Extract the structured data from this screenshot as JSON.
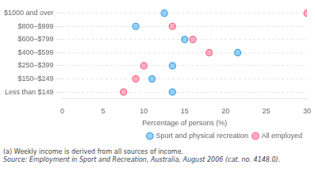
{
  "chart_data": {
    "type": "dot",
    "orientation": "horizontal",
    "categories": [
      "Less than $149",
      "$150–$249",
      "$250–$399",
      "$400–$599",
      "$600–$799",
      "$800–$999",
      "$1000 and over"
    ],
    "series": [
      {
        "name": "Sport and physical recreation",
        "marker": "circle",
        "values": [
          13.5,
          11.0,
          13.5,
          21.5,
          15.0,
          9.0,
          12.5
        ]
      },
      {
        "name": "All employed",
        "marker": "circle",
        "values": [
          7.5,
          9.0,
          10.0,
          18.0,
          16.0,
          13.5,
          30.0
        ]
      }
    ],
    "xlabel": "Percentage of persons (%)",
    "xlim": [
      0,
      30
    ],
    "xticks": [
      0,
      5,
      10,
      15,
      20,
      25,
      30
    ],
    "grid": true,
    "legend": "lower right",
    "annotations": [
      "(a) Weekly income is derived from all sources of income.",
      "Source: Employment in Sport and Recreation, Australia, August 2006 (cat. no. 4148.0)."
    ]
  }
}
